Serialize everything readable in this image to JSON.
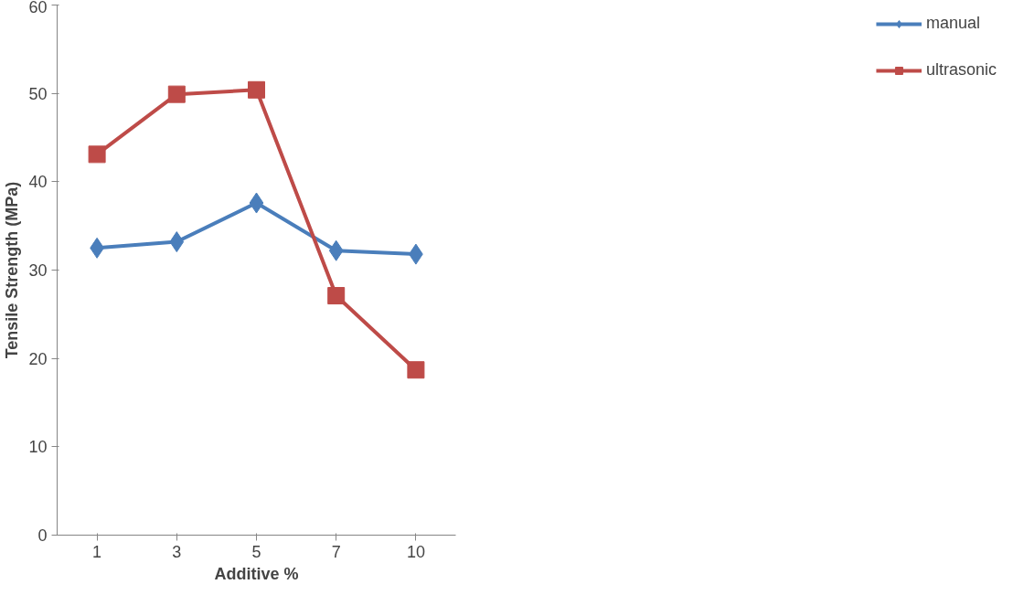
{
  "chart_data": {
    "type": "line",
    "xlabel": "Additive %",
    "ylabel": "Tensile Strength (MPa)",
    "categories": [
      "1",
      "3",
      "5",
      "7",
      "10"
    ],
    "series": [
      {
        "name": "manual",
        "color": "#4a7ebb",
        "marker": "diamond",
        "values": [
          32.5,
          33.2,
          37.6,
          32.2,
          31.8
        ]
      },
      {
        "name": "ultrasonic",
        "color": "#be4b48",
        "marker": "square",
        "values": [
          43.1,
          49.9,
          50.4,
          27.1,
          18.7
        ]
      }
    ],
    "ylim": [
      0,
      60
    ],
    "yticks": [
      0,
      10,
      20,
      30,
      40,
      50,
      60
    ],
    "grid": false,
    "legend": "right",
    "line_style": "solid"
  }
}
